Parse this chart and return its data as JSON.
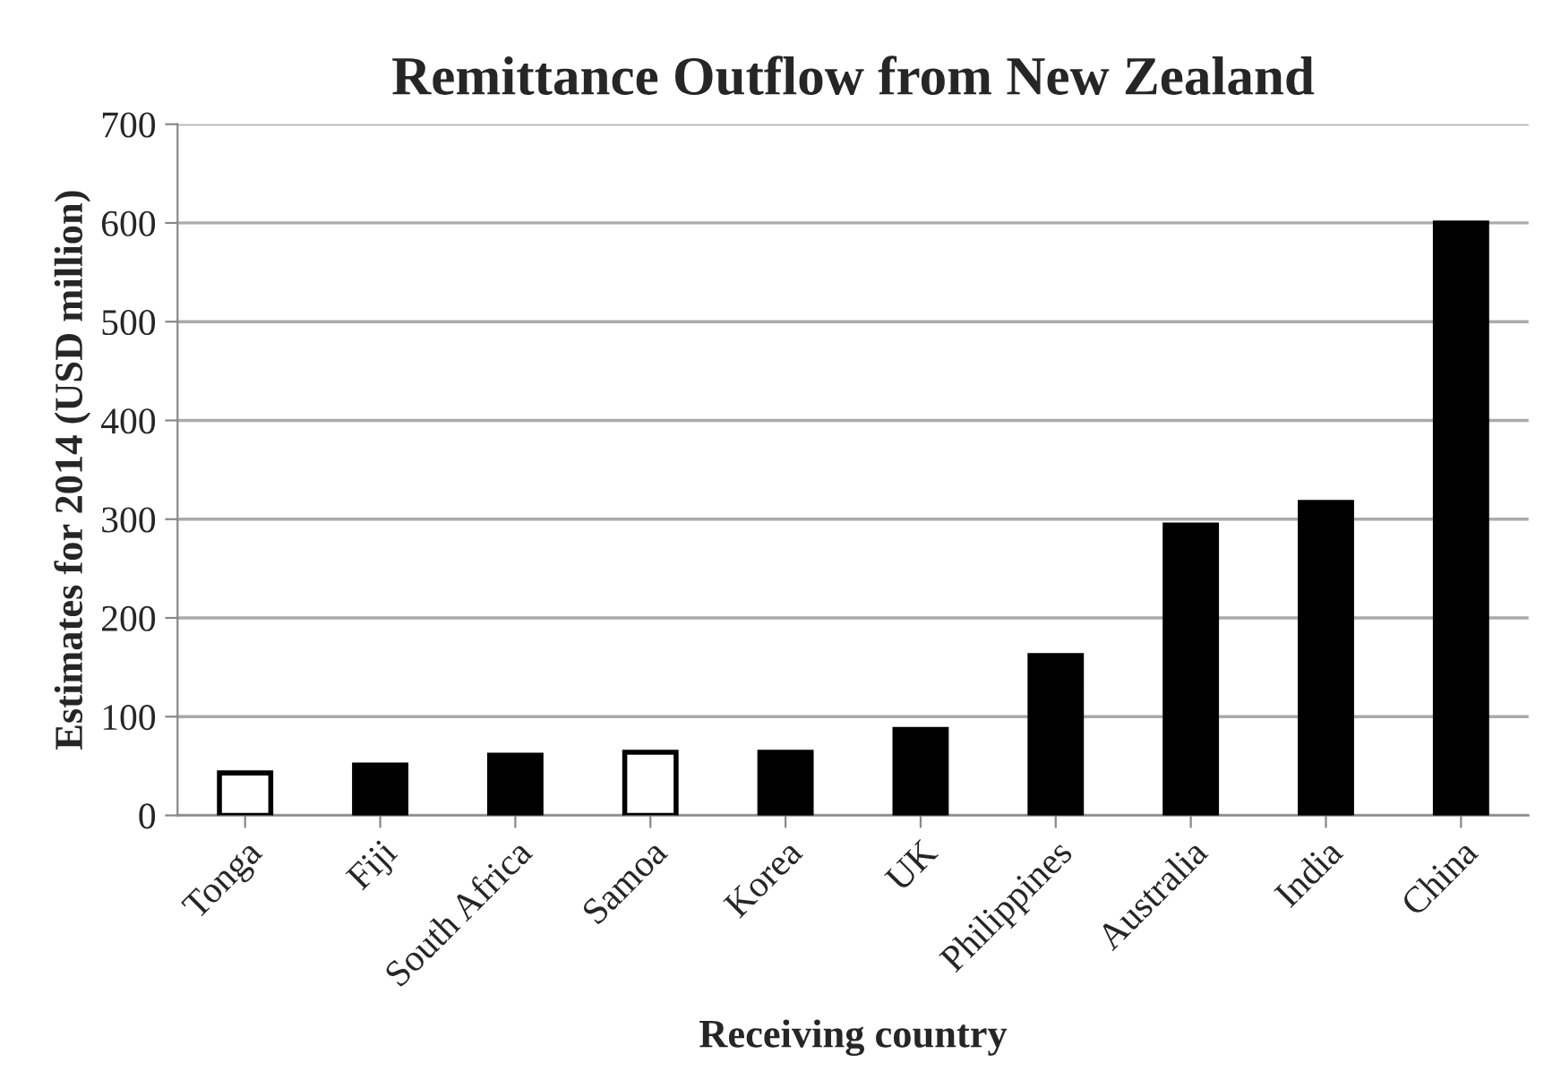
{
  "chart_data": {
    "type": "bar",
    "title": "Remittance Outflow from New Zealand",
    "xlabel": "Receiving country",
    "ylabel": "Estimates for 2014 (USD million)",
    "categories": [
      "Tonga",
      "Fiji",
      "South Africa",
      "Samoa",
      "Korea",
      "UK",
      "Philippines",
      "Australia",
      "India",
      "China"
    ],
    "values": [
      43,
      51,
      61,
      64,
      64,
      87,
      162,
      294,
      317,
      600
    ],
    "colors": [
      "#ffffff",
      "#000000",
      "#000000",
      "#ffffff",
      "#000000",
      "#000000",
      "#000000",
      "#000000",
      "#000000",
      "#000000"
    ],
    "ylim": [
      0,
      700
    ],
    "yticks": [
      0,
      100,
      200,
      300,
      400,
      500,
      600,
      700
    ],
    "grid": "y",
    "legend": false
  }
}
